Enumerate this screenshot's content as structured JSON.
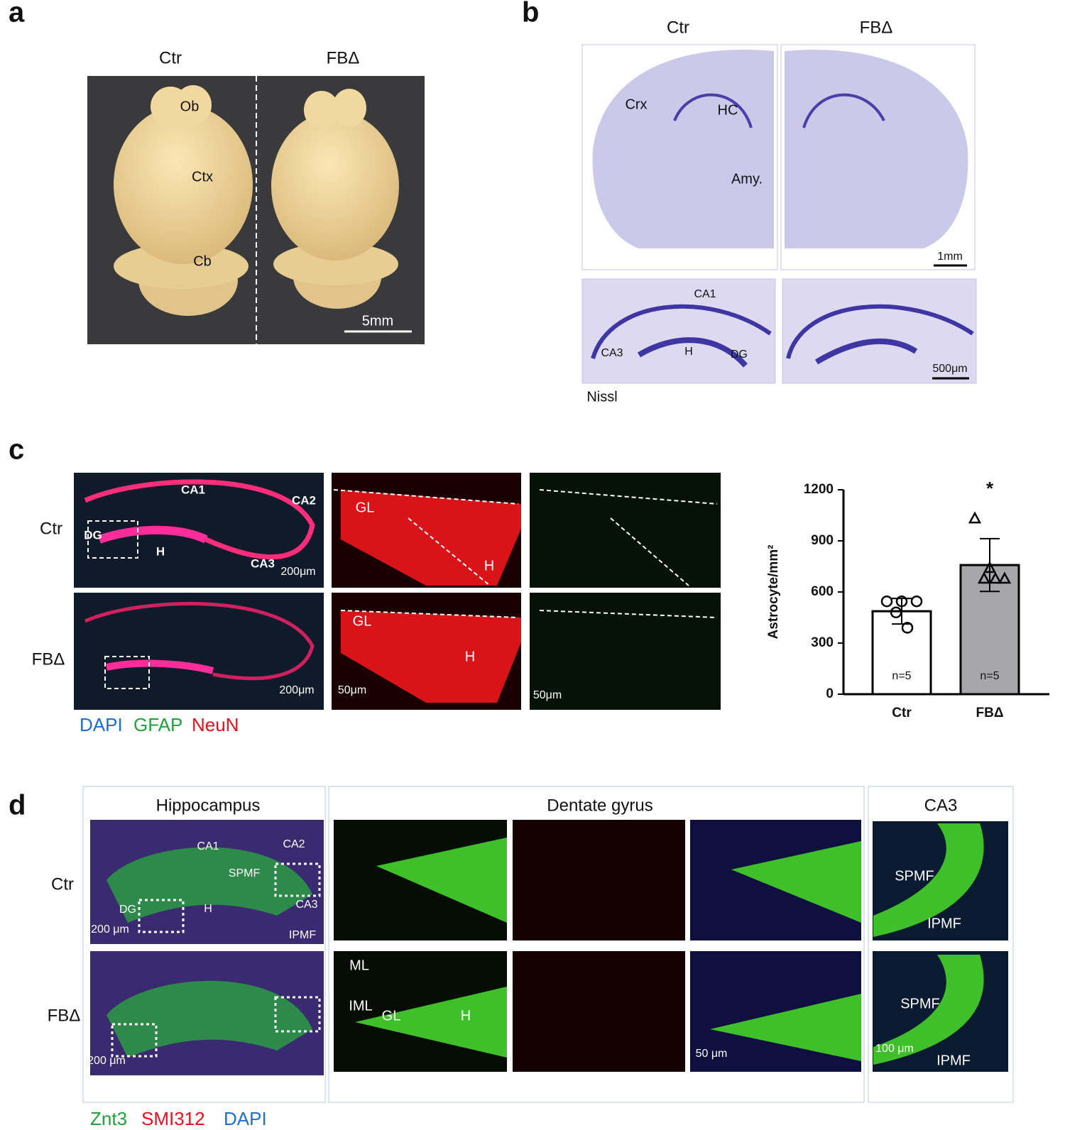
{
  "panel_a": {
    "label": "a",
    "columns": [
      "Ctr",
      "FBΔ"
    ],
    "regions": [
      "Ob",
      "Ctx",
      "Cb"
    ],
    "scale": "5mm"
  },
  "panel_b": {
    "label": "b",
    "columns": [
      "Ctr",
      "FBΔ"
    ],
    "regions": [
      "Crx",
      "HC",
      "Amy."
    ],
    "scale_top": "1mm",
    "subregions": [
      "CA1",
      "CA3",
      "H",
      "DG"
    ],
    "scale_bottom": "500μm",
    "stain": "Nissl"
  },
  "panel_c": {
    "label": "c",
    "rows": [
      "Ctr",
      "FBΔ"
    ],
    "regions": [
      "CA1",
      "CA2",
      "DG",
      "H",
      "CA3"
    ],
    "scale_overview": "200μm",
    "zoom_labels": [
      "GL",
      "H"
    ],
    "scale_zoom": "50μm",
    "stains": [
      "DAPI",
      "GFAP",
      "NeuN"
    ]
  },
  "panel_d": {
    "label": "d",
    "rows": [
      "Ctr",
      "FBΔ"
    ],
    "sections": [
      "Hippocampus",
      "Dentate gyrus",
      "CA3"
    ],
    "regions": [
      "CA1",
      "CA2",
      "SPMF",
      "CA3",
      "DG",
      "H",
      "IPMF"
    ],
    "layers": [
      "ML",
      "IML",
      "GL",
      "H"
    ],
    "scales": [
      "200 μm",
      "50 μm",
      "100 μm"
    ],
    "stains": [
      "Znt3",
      "SMI312",
      "DAPI"
    ]
  },
  "chart_data": {
    "type": "bar",
    "y_label": "Astrocyte/mm²",
    "categories": [
      "Ctr",
      "FBΔ"
    ],
    "values": [
      487,
      758
    ],
    "errors": [
      75,
      155
    ],
    "colors": [
      "#ffffff",
      "#a7a7aa"
    ],
    "points": [
      [
        545,
        545,
        545,
        480,
        390
      ],
      [
        1033,
        742,
        679,
        679,
        679
      ]
    ],
    "markers": [
      "circle",
      "triangle"
    ],
    "sample_sizes": [
      "n=5",
      "n=5"
    ],
    "significance": "*",
    "ylim": [
      0,
      1200
    ],
    "yticks": [
      0,
      300,
      600,
      900,
      1200
    ]
  }
}
